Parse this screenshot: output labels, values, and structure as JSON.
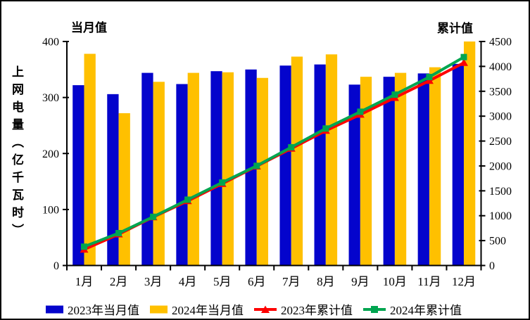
{
  "chart_data": {
    "type": "bar+line",
    "title": "",
    "categories": [
      "1月",
      "2月",
      "3月",
      "4月",
      "5月",
      "6月",
      "7月",
      "8月",
      "9月",
      "10月",
      "11月",
      "12月"
    ],
    "series": [
      {
        "name": "2023年当月值",
        "type": "bar",
        "axis": "left",
        "color": "#0404CC",
        "marker": "rect",
        "values": [
          322,
          306,
          344,
          324,
          347,
          350,
          357,
          359,
          323,
          337,
          343,
          360
        ]
      },
      {
        "name": "2024年当月值",
        "type": "bar",
        "axis": "left",
        "color": "#FFC000",
        "marker": "rect",
        "values": [
          378,
          272,
          328,
          344,
          345,
          335,
          373,
          377,
          337,
          344,
          354,
          400
        ]
      },
      {
        "name": "2023年累计值",
        "type": "line",
        "axis": "right",
        "color": "#FE0000",
        "marker": "triangle",
        "values": [
          322,
          628,
          972,
          1296,
          1643,
          1993,
          2350,
          2709,
          3032,
          3369,
          3712,
          4072
        ]
      },
      {
        "name": "2024年累计值",
        "type": "line",
        "axis": "right",
        "color": "#00A550",
        "marker": "square",
        "values": [
          378,
          650,
          978,
          1322,
          1667,
          2002,
          2375,
          2752,
          3089,
          3433,
          3787,
          4187
        ]
      }
    ],
    "left_axis": {
      "label": "当月值",
      "title": "上网电量（亿千瓦时）",
      "min": 0,
      "max": 400,
      "step": 100
    },
    "right_axis": {
      "label": "累计值",
      "min": 0,
      "max": 4500,
      "step": 500
    },
    "grid": false,
    "legend_position": "bottom",
    "plot_background": "#FFFFFF",
    "axis_color": "#000000"
  }
}
